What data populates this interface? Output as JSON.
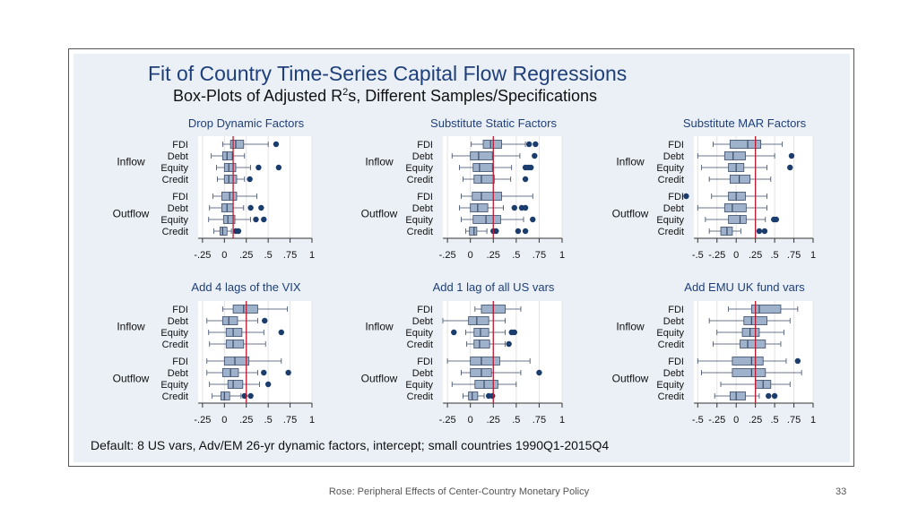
{
  "slide": {
    "title": "Fit of Country Time-Series Capital Flow Regressions",
    "subtitle_pre": "Box-Plots of Adjusted R",
    "subtitle_sup": "2",
    "subtitle_post": "s, Different Samples/Specifications",
    "note": "Default: 8 US vars, Adv/EM 26-yr dynamic factors, intercept; small countries 1990Q1-2015Q4",
    "footer": "Rose: Peripheral Effects of Center-Country Monetary Policy",
    "page_number": "33"
  },
  "colors": {
    "title": "#1f3f7a",
    "panel_title": "#1f3f7a",
    "box_fill": "#9fb2cc",
    "box_stroke": "#3a4a66",
    "outlier": "#1b3d6e",
    "reference_line": "#c0192f",
    "panel_background": "#ffffff",
    "slide_background": "#eaf0f6"
  },
  "chart_data": [
    {
      "type": "boxplot",
      "title": "Drop Dynamic Factors",
      "reference_line": 0.1,
      "xlim": [
        -0.3,
        1
      ],
      "xticks": [
        "-.25",
        "0",
        ".25",
        ".5",
        ".75",
        "1"
      ],
      "groups": [
        {
          "label": "Inflow",
          "rows": [
            {
              "label": "FDI",
              "min": -0.02,
              "q1": 0.07,
              "med": 0.13,
              "q3": 0.22,
              "max": 0.5,
              "outliers": [
                0.59
              ]
            },
            {
              "label": "Debt",
              "min": -0.15,
              "q1": -0.02,
              "med": 0.03,
              "q3": 0.09,
              "max": 0.23,
              "outliers": []
            },
            {
              "label": "Equity",
              "min": -0.09,
              "q1": 0.0,
              "med": 0.05,
              "q3": 0.13,
              "max": 0.3,
              "outliers": [
                0.39,
                0.62
              ]
            },
            {
              "label": "Credit",
              "min": -0.08,
              "q1": 0.0,
              "med": 0.05,
              "q3": 0.14,
              "max": 0.23,
              "outliers": [
                0.29
              ]
            }
          ]
        },
        {
          "label": "Outflow",
          "rows": [
            {
              "label": "FDI",
              "min": -0.13,
              "q1": -0.03,
              "med": 0.06,
              "q3": 0.14,
              "max": 0.37,
              "outliers": []
            },
            {
              "label": "Debt",
              "min": -0.17,
              "q1": -0.03,
              "med": 0.03,
              "q3": 0.1,
              "max": 0.22,
              "outliers": [
                0.3,
                0.42
              ]
            },
            {
              "label": "Equity",
              "min": -0.18,
              "q1": -0.01,
              "med": 0.04,
              "q3": 0.12,
              "max": 0.3,
              "outliers": [
                0.36,
                0.45
              ]
            },
            {
              "label": "Credit",
              "min": -0.12,
              "q1": -0.05,
              "med": -0.02,
              "q3": 0.03,
              "max": 0.08,
              "outliers": [
                0.13,
                0.16
              ]
            }
          ]
        }
      ]
    },
    {
      "type": "boxplot",
      "title": "Substitute Static Factors",
      "reference_line": 0.25,
      "xlim": [
        -0.3,
        1
      ],
      "xticks": [
        "-.25",
        "0",
        ".25",
        ".5",
        ".75",
        "1"
      ],
      "groups": [
        {
          "label": "Inflow",
          "rows": [
            {
              "label": "FDI",
              "min": 0.01,
              "q1": 0.14,
              "med": 0.22,
              "q3": 0.34,
              "max": 0.6,
              "outliers": [
                0.64,
                0.71
              ]
            },
            {
              "label": "Debt",
              "min": -0.2,
              "q1": 0.0,
              "med": 0.09,
              "q3": 0.24,
              "max": 0.54,
              "outliers": [
                0.7
              ]
            },
            {
              "label": "Equity",
              "min": -0.12,
              "q1": 0.03,
              "med": 0.1,
              "q3": 0.24,
              "max": 0.45,
              "outliers": [
                0.6,
                0.63,
                0.66
              ]
            },
            {
              "label": "Credit",
              "min": -0.08,
              "q1": 0.04,
              "med": 0.12,
              "q3": 0.26,
              "max": 0.44,
              "outliers": [
                0.6
              ]
            }
          ]
        },
        {
          "label": "Outflow",
          "rows": [
            {
              "label": "FDI",
              "min": -0.1,
              "q1": 0.02,
              "med": 0.12,
              "q3": 0.34,
              "max": 0.68,
              "outliers": []
            },
            {
              "label": "Debt",
              "min": -0.12,
              "q1": 0.0,
              "med": 0.08,
              "q3": 0.19,
              "max": 0.36,
              "outliers": [
                0.48,
                0.56,
                0.6
              ]
            },
            {
              "label": "Equity",
              "min": -0.1,
              "q1": 0.03,
              "med": 0.17,
              "q3": 0.33,
              "max": 0.58,
              "outliers": [
                0.68
              ]
            },
            {
              "label": "Credit",
              "min": -0.05,
              "q1": -0.01,
              "med": 0.04,
              "q3": 0.07,
              "max": 0.18,
              "outliers": [
                0.25,
                0.28,
                0.52,
                0.6
              ]
            }
          ]
        }
      ]
    },
    {
      "type": "boxplot",
      "title": "Substitute MAR Factors",
      "reference_line": 0.25,
      "xlim": [
        -0.55,
        1
      ],
      "xticks": [
        "-.5",
        "-.25",
        "0",
        ".25",
        ".5",
        ".75",
        "1"
      ],
      "groups": [
        {
          "label": "Inflow",
          "rows": [
            {
              "label": "FDI",
              "min": -0.3,
              "q1": -0.08,
              "med": 0.15,
              "q3": 0.32,
              "max": 0.6,
              "outliers": []
            },
            {
              "label": "Debt",
              "min": -0.5,
              "q1": -0.15,
              "med": -0.04,
              "q3": 0.12,
              "max": 0.5,
              "outliers": [
                0.72
              ]
            },
            {
              "label": "Equity",
              "min": -0.45,
              "q1": -0.1,
              "med": 0.0,
              "q3": 0.1,
              "max": 0.4,
              "outliers": [
                0.7
              ]
            },
            {
              "label": "Credit",
              "min": -0.35,
              "q1": -0.08,
              "med": 0.04,
              "q3": 0.18,
              "max": 0.45,
              "outliers": []
            }
          ]
        },
        {
          "label": "Outflow",
          "rows": [
            {
              "label": "FDI",
              "min": -0.32,
              "q1": -0.1,
              "med": 0.0,
              "q3": 0.12,
              "max": 0.4,
              "outliers": [
                -0.65
              ]
            },
            {
              "label": "Debt",
              "min": -0.5,
              "q1": -0.15,
              "med": -0.05,
              "q3": 0.13,
              "max": 0.4,
              "outliers": []
            },
            {
              "label": "Equity",
              "min": -0.4,
              "q1": -0.1,
              "med": 0.05,
              "q3": 0.13,
              "max": 0.38,
              "outliers": [
                0.49,
                0.52
              ]
            },
            {
              "label": "Credit",
              "min": -0.35,
              "q1": -0.2,
              "med": -0.12,
              "q3": -0.05,
              "max": 0.06,
              "outliers": [
                0.3,
                0.37
              ]
            }
          ]
        }
      ]
    },
    {
      "type": "boxplot",
      "title": "Add 4 lags of the VIX",
      "reference_line": 0.25,
      "xlim": [
        -0.3,
        1
      ],
      "xticks": [
        "-.25",
        "0",
        ".25",
        ".5",
        ".75",
        "1"
      ],
      "groups": [
        {
          "label": "Inflow",
          "rows": [
            {
              "label": "FDI",
              "min": -0.02,
              "q1": 0.1,
              "med": 0.22,
              "q3": 0.38,
              "max": 0.72,
              "outliers": []
            },
            {
              "label": "Debt",
              "min": -0.2,
              "q1": -0.02,
              "med": 0.05,
              "q3": 0.15,
              "max": 0.38,
              "outliers": [
                0.46
              ]
            },
            {
              "label": "Equity",
              "min": -0.18,
              "q1": 0.02,
              "med": 0.1,
              "q3": 0.2,
              "max": 0.45,
              "outliers": [
                0.65
              ]
            },
            {
              "label": "Credit",
              "min": -0.17,
              "q1": 0.02,
              "med": 0.1,
              "q3": 0.22,
              "max": 0.47,
              "outliers": []
            }
          ]
        },
        {
          "label": "Outflow",
          "rows": [
            {
              "label": "FDI",
              "min": -0.2,
              "q1": 0.0,
              "med": 0.12,
              "q3": 0.28,
              "max": 0.65,
              "outliers": []
            },
            {
              "label": "Debt",
              "min": -0.2,
              "q1": -0.02,
              "med": 0.07,
              "q3": 0.16,
              "max": 0.38,
              "outliers": [
                0.45,
                0.73
              ]
            },
            {
              "label": "Equity",
              "min": -0.17,
              "q1": 0.04,
              "med": 0.1,
              "q3": 0.21,
              "max": 0.4,
              "outliers": [
                0.5
              ]
            },
            {
              "label": "Credit",
              "min": -0.14,
              "q1": -0.04,
              "med": 0.0,
              "q3": 0.06,
              "max": 0.19,
              "outliers": [
                0.23,
                0.3
              ]
            }
          ]
        }
      ]
    },
    {
      "type": "boxplot",
      "title": "Add 1 lag of all US vars",
      "reference_line": 0.25,
      "xlim": [
        -0.3,
        1
      ],
      "xticks": [
        "-.25",
        "0",
        ".25",
        ".5",
        ".75",
        "1"
      ],
      "groups": [
        {
          "label": "Inflow",
          "rows": [
            {
              "label": "FDI",
              "min": 0.05,
              "q1": 0.12,
              "med": 0.25,
              "q3": 0.38,
              "max": 0.55,
              "outliers": []
            },
            {
              "label": "Debt",
              "min": -0.3,
              "q1": -0.02,
              "med": 0.07,
              "q3": 0.2,
              "max": 0.38,
              "outliers": []
            },
            {
              "label": "Equity",
              "min": -0.05,
              "q1": 0.04,
              "med": 0.11,
              "q3": 0.2,
              "max": 0.38,
              "outliers": [
                -0.18,
                0.45,
                0.48
              ]
            },
            {
              "label": "Credit",
              "min": -0.04,
              "q1": 0.04,
              "med": 0.1,
              "q3": 0.21,
              "max": 0.38,
              "outliers": [
                0.42
              ]
            }
          ]
        },
        {
          "label": "Outflow",
          "rows": [
            {
              "label": "FDI",
              "min": -0.25,
              "q1": 0.0,
              "med": 0.12,
              "q3": 0.32,
              "max": 0.65,
              "outliers": []
            },
            {
              "label": "Debt",
              "min": -0.1,
              "q1": 0.0,
              "med": 0.12,
              "q3": 0.23,
              "max": 0.55,
              "outliers": [
                0.75
              ]
            },
            {
              "label": "Equity",
              "min": -0.2,
              "q1": 0.05,
              "med": 0.15,
              "q3": 0.3,
              "max": 0.5,
              "outliers": []
            },
            {
              "label": "Credit",
              "min": -0.08,
              "q1": -0.02,
              "med": 0.02,
              "q3": 0.08,
              "max": 0.15,
              "outliers": [
                0.2,
                0.24
              ]
            }
          ]
        }
      ]
    },
    {
      "type": "boxplot",
      "title": "Add EMU UK fund vars",
      "reference_line": 0.25,
      "xlim": [
        -0.55,
        1
      ],
      "xticks": [
        "-.5",
        "-.25",
        "0",
        ".25",
        ".5",
        ".75",
        "1"
      ],
      "groups": [
        {
          "label": "Inflow",
          "rows": [
            {
              "label": "FDI",
              "min": -0.1,
              "q1": 0.2,
              "med": 0.3,
              "q3": 0.58,
              "max": 0.8,
              "outliers": []
            },
            {
              "label": "Debt",
              "min": -0.35,
              "q1": 0.1,
              "med": 0.2,
              "q3": 0.4,
              "max": 0.7,
              "outliers": []
            },
            {
              "label": "Equity",
              "min": -0.25,
              "q1": 0.08,
              "med": 0.18,
              "q3": 0.3,
              "max": 0.62,
              "outliers": []
            },
            {
              "label": "Credit",
              "min": -0.3,
              "q1": 0.05,
              "med": 0.15,
              "q3": 0.38,
              "max": 0.58,
              "outliers": []
            }
          ]
        },
        {
          "label": "Outflow",
          "rows": [
            {
              "label": "FDI",
              "min": -0.5,
              "q1": -0.05,
              "med": 0.2,
              "q3": 0.35,
              "max": 0.65,
              "outliers": [
                0.8
              ]
            },
            {
              "label": "Debt",
              "min": -0.45,
              "q1": -0.05,
              "med": 0.2,
              "q3": 0.38,
              "max": 0.85,
              "outliers": []
            },
            {
              "label": "Equity",
              "min": -0.2,
              "q1": 0.25,
              "med": 0.35,
              "q3": 0.45,
              "max": 0.7,
              "outliers": []
            },
            {
              "label": "Credit",
              "min": -0.28,
              "q1": -0.08,
              "med": 0.0,
              "q3": 0.12,
              "max": 0.3,
              "outliers": [
                0.42,
                0.5
              ]
            }
          ]
        }
      ]
    }
  ]
}
